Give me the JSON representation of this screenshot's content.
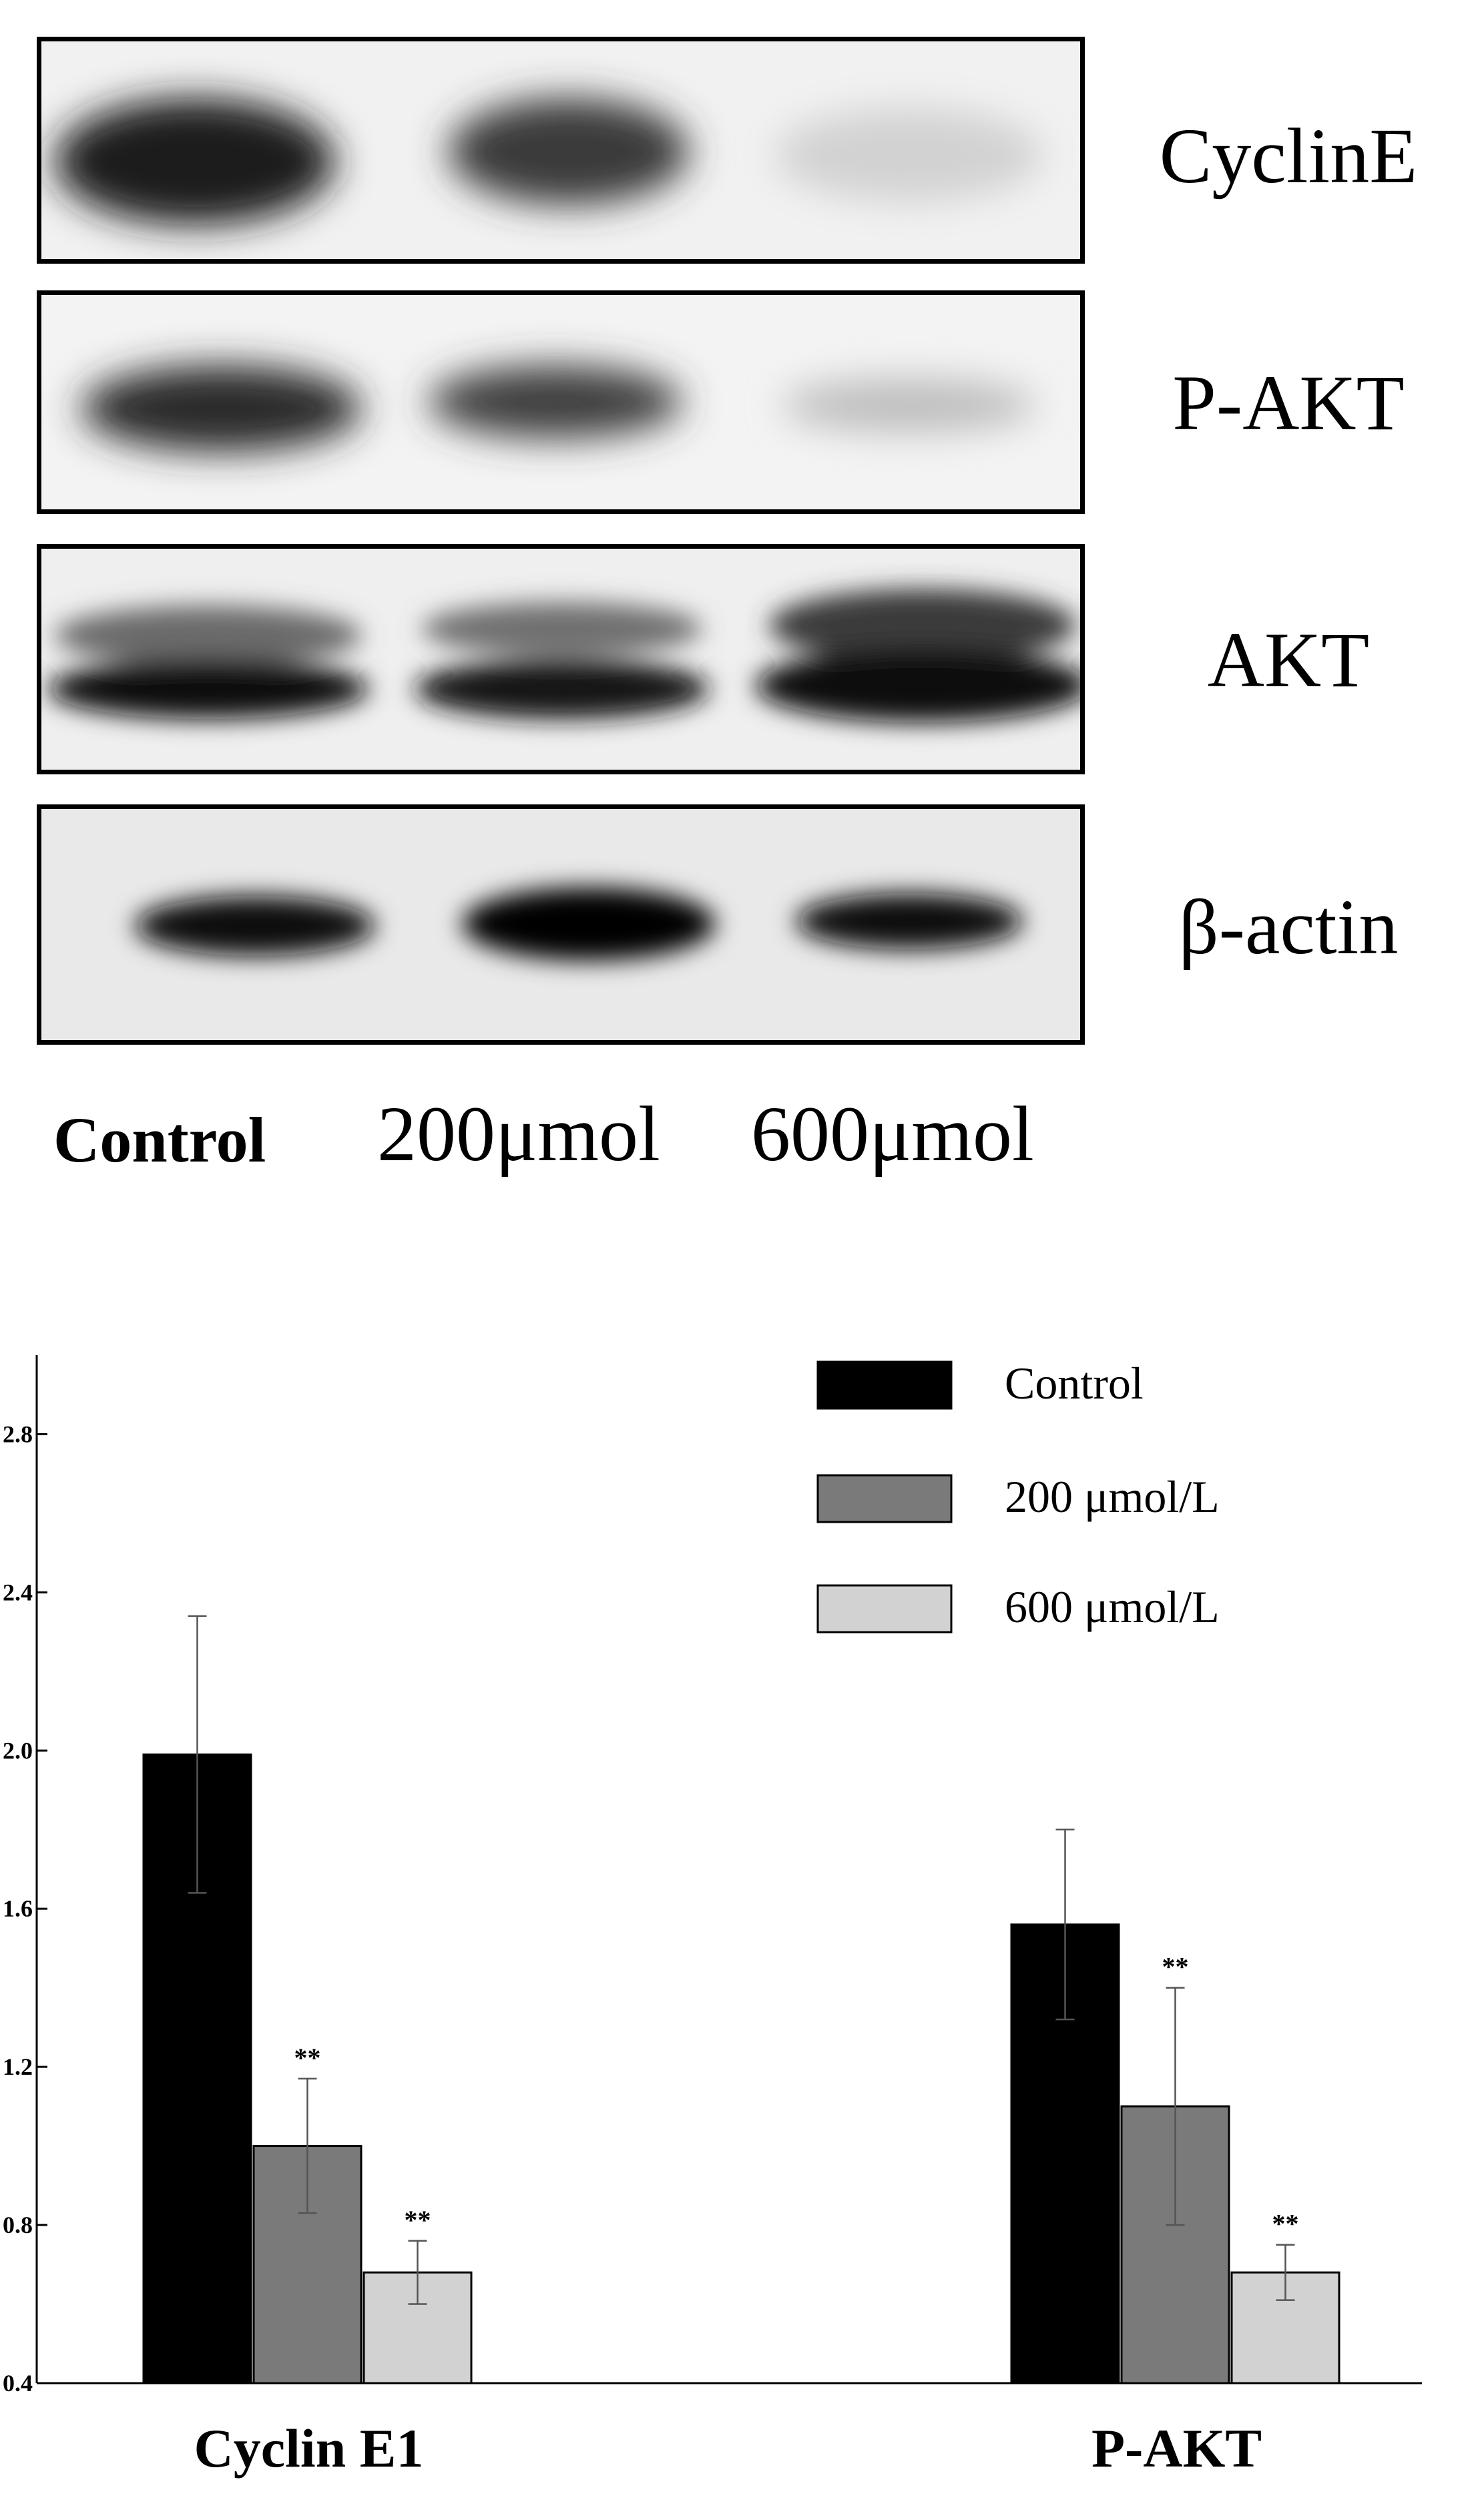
{
  "blot": {
    "proteins": [
      "CyclinE",
      "P-AKT",
      "AKT",
      "β-actin"
    ],
    "lanes": [
      "Control",
      "200μmol",
      "600μmol"
    ]
  },
  "chart_data": {
    "type": "bar",
    "categories": [
      "Cyclin E1",
      "P-AKT"
    ],
    "series": [
      {
        "name": "Control",
        "color": "#000000",
        "values": [
          1.99,
          1.56
        ],
        "errors": [
          0.35,
          0.24
        ],
        "significance": [
          "",
          ""
        ]
      },
      {
        "name": "200 μmol/L",
        "color": "#7a7a7a",
        "values": [
          1.0,
          1.1
        ],
        "errors": [
          0.17,
          0.3
        ],
        "significance": [
          "**",
          "**"
        ]
      },
      {
        "name": "600 μmol/L",
        "color": "#d2d2d2",
        "values": [
          0.68,
          0.68
        ],
        "errors": [
          0.08,
          0.07
        ],
        "significance": [
          "**",
          "**"
        ]
      }
    ],
    "ylim": [
      0.4,
      3.0
    ],
    "yticks": [
      "0.4",
      "0.8",
      "1.2",
      "1.6",
      "2.0",
      "2.4",
      "2.8"
    ],
    "legend_position": "top-right",
    "grid": false
  }
}
